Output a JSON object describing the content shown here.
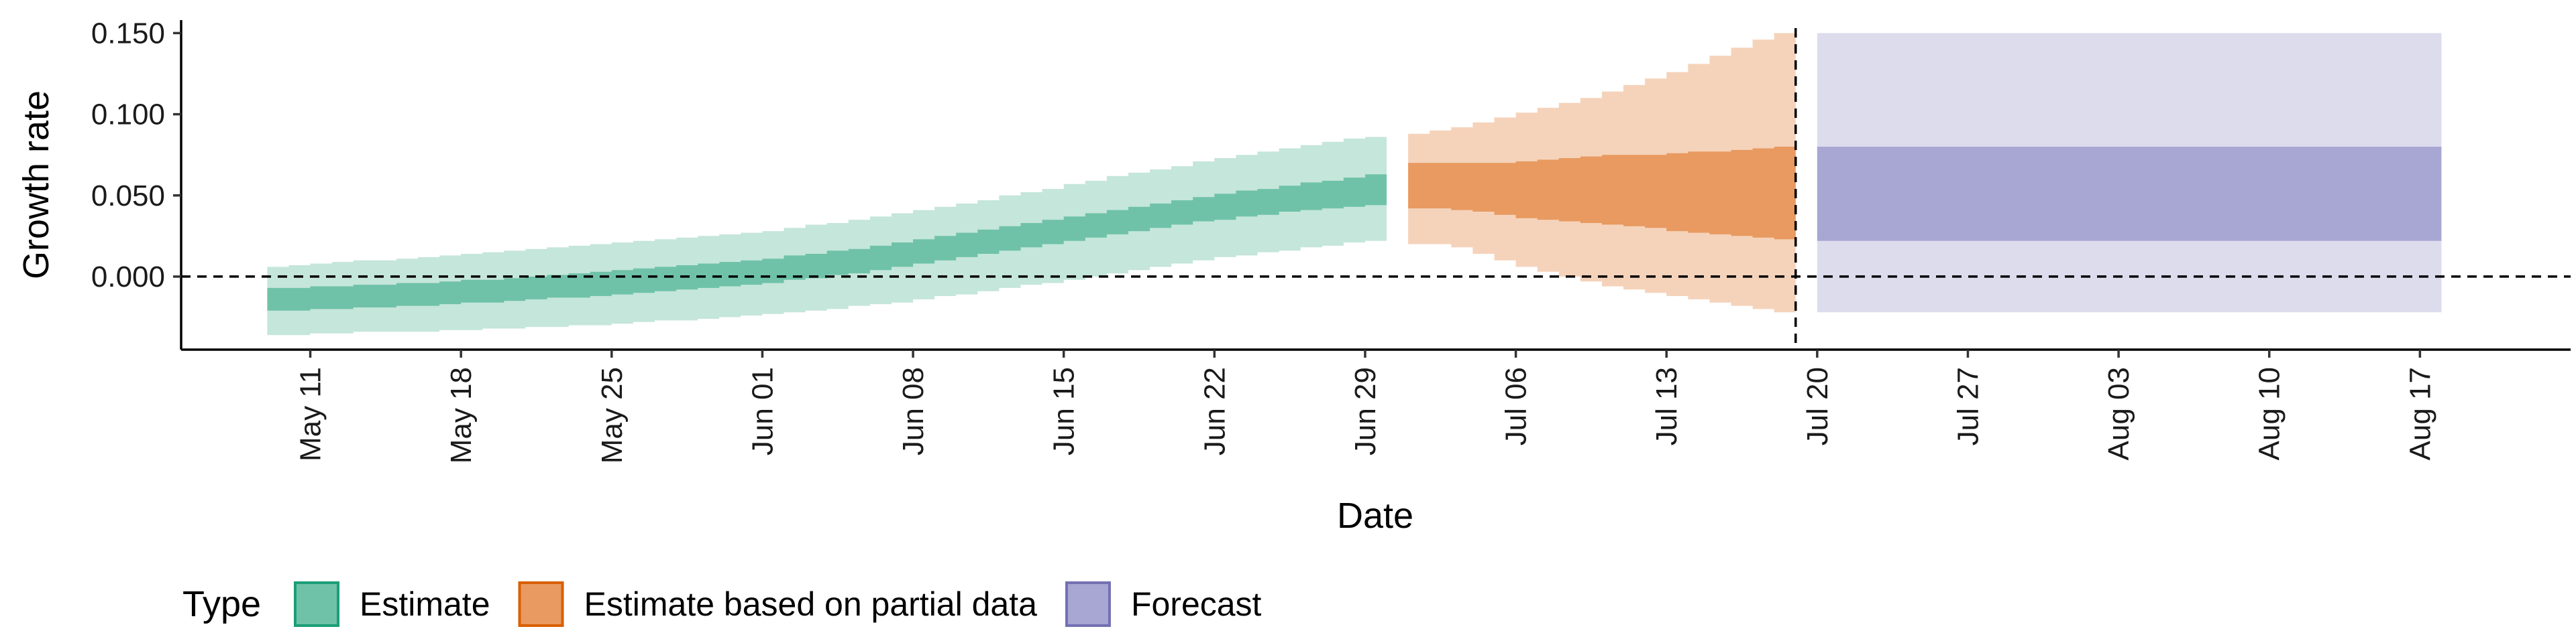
{
  "chart_data": {
    "type": "area",
    "xlabel": "Date",
    "ylabel": "Growth rate",
    "ylim": [
      -0.045,
      0.158
    ],
    "y_ticks": [
      0.0,
      0.05,
      0.1,
      0.15
    ],
    "y_tick_labels": [
      "0.000",
      "0.050",
      "0.100",
      "0.150"
    ],
    "x_ticks": [
      "2020-05-11",
      "2020-05-18",
      "2020-05-25",
      "2020-06-01",
      "2020-06-08",
      "2020-06-15",
      "2020-06-22",
      "2020-06-29",
      "2020-07-06",
      "2020-07-13",
      "2020-07-20",
      "2020-07-27",
      "2020-08-03",
      "2020-08-10",
      "2020-08-17"
    ],
    "x_tick_labels": [
      "May 11",
      "May 18",
      "May 25",
      "Jun 01",
      "Jun 08",
      "Jun 15",
      "Jun 22",
      "Jun 29",
      "Jul 06",
      "Jul 13",
      "Jul 20",
      "Jul 27",
      "Aug 03",
      "Aug 10",
      "Aug 17"
    ],
    "xlim": [
      "2020-05-05",
      "2020-08-24"
    ],
    "hline": 0,
    "vline": "2020-07-19",
    "grid": false,
    "legend": {
      "title": "Type",
      "position": "bottom",
      "entries": [
        {
          "label": "Estimate",
          "fill": "#6fc2a8",
          "border": "#1b9e77"
        },
        {
          "label": "Estimate based on partial data",
          "fill": "#e89a60",
          "border": "#d95f02"
        },
        {
          "label": "Forecast",
          "fill": "#a8a6d2",
          "border": "#7570b3"
        }
      ]
    },
    "series": [
      {
        "name": "Estimate",
        "inner_color": "#6fc2a8",
        "outer_color": "#c5e6da",
        "x": [
          "2020-05-10",
          "2020-05-11",
          "2020-05-12",
          "2020-05-13",
          "2020-05-14",
          "2020-05-15",
          "2020-05-16",
          "2020-05-17",
          "2020-05-18",
          "2020-05-19",
          "2020-05-20",
          "2020-05-21",
          "2020-05-22",
          "2020-05-23",
          "2020-05-24",
          "2020-05-25",
          "2020-05-26",
          "2020-05-27",
          "2020-05-28",
          "2020-05-29",
          "2020-05-30",
          "2020-05-31",
          "2020-06-01",
          "2020-06-02",
          "2020-06-03",
          "2020-06-04",
          "2020-06-05",
          "2020-06-06",
          "2020-06-07",
          "2020-06-08",
          "2020-06-09",
          "2020-06-10",
          "2020-06-11",
          "2020-06-12",
          "2020-06-13",
          "2020-06-14",
          "2020-06-15",
          "2020-06-16",
          "2020-06-17",
          "2020-06-18",
          "2020-06-19",
          "2020-06-20",
          "2020-06-21",
          "2020-06-22",
          "2020-06-23",
          "2020-06-24",
          "2020-06-25",
          "2020-06-26",
          "2020-06-27",
          "2020-06-28",
          "2020-06-29",
          "2020-06-30"
        ],
        "lower_90": [
          -0.036,
          -0.036,
          -0.035,
          -0.035,
          -0.034,
          -0.034,
          -0.034,
          -0.034,
          -0.033,
          -0.033,
          -0.032,
          -0.032,
          -0.031,
          -0.031,
          -0.03,
          -0.03,
          -0.029,
          -0.028,
          -0.027,
          -0.027,
          -0.026,
          -0.025,
          -0.024,
          -0.023,
          -0.022,
          -0.021,
          -0.02,
          -0.018,
          -0.017,
          -0.016,
          -0.014,
          -0.012,
          -0.011,
          -0.009,
          -0.007,
          -0.005,
          -0.004,
          -0.002,
          0.0,
          0.002,
          0.004,
          0.006,
          0.008,
          0.01,
          0.012,
          0.013,
          0.015,
          0.016,
          0.018,
          0.019,
          0.021,
          0.022
        ],
        "lower_50": [
          -0.021,
          -0.021,
          -0.02,
          -0.02,
          -0.019,
          -0.019,
          -0.018,
          -0.018,
          -0.017,
          -0.016,
          -0.016,
          -0.015,
          -0.014,
          -0.013,
          -0.013,
          -0.012,
          -0.011,
          -0.01,
          -0.009,
          -0.008,
          -0.007,
          -0.006,
          -0.005,
          -0.004,
          -0.002,
          -0.001,
          0.001,
          0.002,
          0.004,
          0.006,
          0.008,
          0.01,
          0.012,
          0.014,
          0.016,
          0.018,
          0.02,
          0.022,
          0.024,
          0.026,
          0.028,
          0.03,
          0.032,
          0.034,
          0.035,
          0.037,
          0.038,
          0.04,
          0.041,
          0.042,
          0.043,
          0.044
        ],
        "upper_50": [
          -0.007,
          -0.007,
          -0.006,
          -0.006,
          -0.005,
          -0.005,
          -0.004,
          -0.004,
          -0.003,
          -0.002,
          -0.002,
          -0.001,
          0.0,
          0.001,
          0.002,
          0.003,
          0.004,
          0.005,
          0.006,
          0.007,
          0.008,
          0.009,
          0.01,
          0.011,
          0.013,
          0.014,
          0.016,
          0.017,
          0.019,
          0.021,
          0.023,
          0.025,
          0.027,
          0.029,
          0.031,
          0.033,
          0.035,
          0.037,
          0.039,
          0.041,
          0.043,
          0.045,
          0.047,
          0.049,
          0.051,
          0.053,
          0.054,
          0.056,
          0.058,
          0.059,
          0.061,
          0.063
        ],
        "upper_90": [
          0.006,
          0.007,
          0.008,
          0.009,
          0.01,
          0.01,
          0.011,
          0.012,
          0.013,
          0.014,
          0.015,
          0.016,
          0.017,
          0.018,
          0.019,
          0.02,
          0.021,
          0.022,
          0.023,
          0.024,
          0.025,
          0.026,
          0.027,
          0.028,
          0.03,
          0.032,
          0.033,
          0.035,
          0.037,
          0.039,
          0.041,
          0.043,
          0.045,
          0.047,
          0.05,
          0.052,
          0.054,
          0.057,
          0.059,
          0.062,
          0.064,
          0.066,
          0.068,
          0.071,
          0.073,
          0.075,
          0.077,
          0.079,
          0.081,
          0.083,
          0.085,
          0.086
        ]
      },
      {
        "name": "Estimate based on partial data",
        "inner_color": "#e89a60",
        "outer_color": "#f5d3bb",
        "x": [
          "2020-07-02",
          "2020-07-03",
          "2020-07-04",
          "2020-07-05",
          "2020-07-06",
          "2020-07-07",
          "2020-07-08",
          "2020-07-09",
          "2020-07-10",
          "2020-07-11",
          "2020-07-12",
          "2020-07-13",
          "2020-07-14",
          "2020-07-15",
          "2020-07-16",
          "2020-07-17",
          "2020-07-18",
          "2020-07-19"
        ],
        "lower_90": [
          0.02,
          0.02,
          0.018,
          0.014,
          0.01,
          0.006,
          0.003,
          0.0,
          -0.003,
          -0.006,
          -0.008,
          -0.01,
          -0.012,
          -0.014,
          -0.016,
          -0.018,
          -0.02,
          -0.022
        ],
        "lower_50": [
          0.042,
          0.042,
          0.041,
          0.04,
          0.038,
          0.036,
          0.035,
          0.034,
          0.033,
          0.032,
          0.031,
          0.03,
          0.028,
          0.027,
          0.026,
          0.025,
          0.024,
          0.023
        ],
        "upper_50": [
          0.07,
          0.07,
          0.07,
          0.07,
          0.07,
          0.071,
          0.072,
          0.073,
          0.074,
          0.075,
          0.075,
          0.075,
          0.076,
          0.077,
          0.077,
          0.078,
          0.079,
          0.08
        ],
        "upper_90": [
          0.088,
          0.09,
          0.092,
          0.095,
          0.098,
          0.101,
          0.104,
          0.107,
          0.11,
          0.114,
          0.118,
          0.122,
          0.126,
          0.131,
          0.136,
          0.141,
          0.146,
          0.15
        ]
      },
      {
        "name": "Forecast",
        "inner_color": "#a8a6d2",
        "outer_color": "#dddced",
        "x": [
          "2020-07-20",
          "2020-08-18"
        ],
        "lower_90": [
          -0.022,
          -0.022
        ],
        "lower_50": [
          0.022,
          0.022
        ],
        "upper_50": [
          0.08,
          0.08
        ],
        "upper_90": [
          0.15,
          0.15
        ]
      }
    ]
  }
}
